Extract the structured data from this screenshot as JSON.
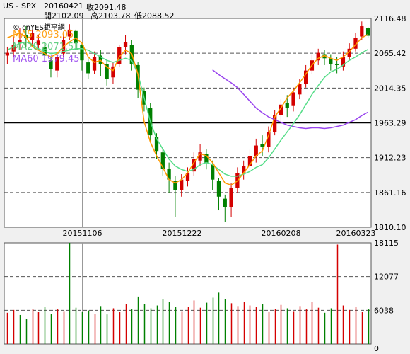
{
  "header": {
    "symbol": "US - SPX",
    "date": "20160421",
    "close_label": "收2091.48",
    "open_label": "開2102.09",
    "high_label": "高2103.78",
    "low_label": "低2088.52"
  },
  "watermark": "© cnYES鉅亨網",
  "colors": {
    "up": "#d40000",
    "down": "#008000",
    "ma5": "#ff9900",
    "ma20": "#55dd88",
    "ma60": "#9944ee",
    "grid": "#555555",
    "ref_line": "#000000"
  },
  "chart_data": [
    {
      "type": "candlestick",
      "title": "",
      "y_tick_labels": [
        "2116.48",
        "2065.42",
        "2014.35",
        "1963.29",
        "1912.23",
        "1861.16",
        "1810.10"
      ],
      "ylim": [
        1810.1,
        2116.48
      ],
      "x_tick_labels": [
        "20151106",
        "20151222",
        "20160208",
        "20160323"
      ],
      "reference_level": 1963.29,
      "legend": [
        {
          "name": "MA5",
          "label": "MA5 2093.05"
        },
        {
          "name": "MA20",
          "label": "MA20 2071.51"
        },
        {
          "name": "MA60",
          "label": "MA60 1979.45"
        }
      ],
      "ma_series": {
        "ma5": [
          2088,
          2092,
          2095,
          2089,
          2075,
          2070,
          2065,
          2060,
          2065,
          2075,
          2082,
          2088,
          2080,
          2060,
          2052,
          2055,
          2045,
          2040,
          2060,
          2070,
          2065,
          2035,
          1965,
          1935,
          1915,
          1898,
          1880,
          1875,
          1880,
          1890,
          1905,
          1918,
          1915,
          1905,
          1890,
          1875,
          1872,
          1878,
          1890,
          1902,
          1915,
          1922,
          1945,
          1972,
          1985,
          2000,
          2010,
          2022,
          2035,
          2048,
          2058,
          2062,
          2058,
          2055,
          2060,
          2068,
          2078,
          2088,
          2093
        ],
        "ma20": [
          2070,
          2075,
          2080,
          2082,
          2078,
          2072,
          2068,
          2065,
          2066,
          2068,
          2070,
          2072,
          2072,
          2070,
          2065,
          2060,
          2055,
          2052,
          2055,
          2058,
          2055,
          2035,
          2000,
          1965,
          1940,
          1925,
          1910,
          1900,
          1895,
          1892,
          1895,
          1902,
          1905,
          1902,
          1895,
          1888,
          1885,
          1885,
          1888,
          1892,
          1898,
          1902,
          1912,
          1925,
          1938,
          1950,
          1962,
          1975,
          1990,
          2005,
          2018,
          2030,
          2038,
          2042,
          2048,
          2055,
          2060,
          2066,
          2071
        ],
        "ma60": [
          null,
          null,
          null,
          null,
          null,
          null,
          null,
          null,
          null,
          null,
          null,
          null,
          null,
          null,
          null,
          null,
          null,
          null,
          null,
          null,
          null,
          null,
          null,
          null,
          null,
          null,
          null,
          null,
          null,
          null,
          null,
          null,
          null,
          2041,
          2034,
          2028,
          2022,
          2015,
          2005,
          1995,
          1985,
          1978,
          1972,
          1968,
          1964,
          1960,
          1958,
          1956,
          1955,
          1956,
          1956,
          1955,
          1956,
          1958,
          1960,
          1964,
          1968,
          1974,
          1979
        ]
      },
      "candles": [
        [
          2062,
          2066,
          2050,
          2075
        ],
        [
          2068,
          2078,
          2060,
          2090
        ],
        [
          2080,
          2085,
          2070,
          2102
        ],
        [
          2092,
          2088,
          2075,
          2105
        ],
        [
          2085,
          2095,
          2075,
          2100
        ],
        [
          2078,
          2084,
          2070,
          2093
        ],
        [
          2075,
          2062,
          2052,
          2082
        ],
        [
          2055,
          2042,
          2030,
          2060
        ],
        [
          2040,
          2060,
          2030,
          2065
        ],
        [
          2065,
          2085,
          2060,
          2093
        ],
        [
          2090,
          2100,
          2085,
          2108
        ],
        [
          2098,
          2080,
          2072,
          2100
        ],
        [
          2078,
          2055,
          2040,
          2082
        ],
        [
          2052,
          2036,
          2028,
          2058
        ],
        [
          2040,
          2060,
          2035,
          2068
        ],
        [
          2062,
          2050,
          2032,
          2070
        ],
        [
          2050,
          2028,
          2018,
          2055
        ],
        [
          2030,
          2046,
          2020,
          2052
        ],
        [
          2050,
          2074,
          2045,
          2078
        ],
        [
          2074,
          2082,
          2064,
          2092
        ],
        [
          2078,
          2050,
          2040,
          2085
        ],
        [
          2048,
          2012,
          2000,
          2052
        ],
        [
          2010,
          1990,
          1980,
          2015
        ],
        [
          1985,
          1945,
          1935,
          1992
        ],
        [
          1942,
          1922,
          1910,
          1948
        ],
        [
          1920,
          1896,
          1885,
          1925
        ],
        [
          1896,
          1880,
          1860,
          1905
        ],
        [
          1878,
          1865,
          1825,
          1885
        ],
        [
          1865,
          1880,
          1855,
          1888
        ],
        [
          1878,
          1890,
          1870,
          1898
        ],
        [
          1892,
          1910,
          1885,
          1920
        ],
        [
          1908,
          1920,
          1900,
          1932
        ],
        [
          1918,
          1905,
          1895,
          1925
        ],
        [
          1902,
          1880,
          1865,
          1908
        ],
        [
          1878,
          1855,
          1835,
          1882
        ],
        [
          1852,
          1840,
          1818,
          1858
        ],
        [
          1840,
          1868,
          1825,
          1875
        ],
        [
          1868,
          1890,
          1860,
          1898
        ],
        [
          1890,
          1900,
          1880,
          1908
        ],
        [
          1900,
          1915,
          1890,
          1924
        ],
        [
          1915,
          1930,
          1905,
          1940
        ],
        [
          1932,
          1928,
          1915,
          1945
        ],
        [
          1928,
          1950,
          1920,
          1958
        ],
        [
          1950,
          1975,
          1945,
          1982
        ],
        [
          1975,
          1990,
          1965,
          1998
        ],
        [
          1992,
          1985,
          1972,
          2004
        ],
        [
          1988,
          2008,
          1980,
          2015
        ],
        [
          2005,
          2020,
          1998,
          2028
        ],
        [
          2020,
          2040,
          2015,
          2048
        ],
        [
          2040,
          2055,
          2035,
          2064
        ],
        [
          2055,
          2066,
          2048,
          2072
        ],
        [
          2064,
          2058,
          2048,
          2070
        ],
        [
          2058,
          2050,
          2040,
          2064
        ],
        [
          2050,
          2048,
          2036,
          2060
        ],
        [
          2046,
          2060,
          2040,
          2068
        ],
        [
          2060,
          2072,
          2055,
          2080
        ],
        [
          2072,
          2088,
          2068,
          2095
        ],
        [
          2090,
          2105,
          2085,
          2112
        ],
        [
          2102,
          2091,
          2088,
          2104
        ]
      ]
    },
    {
      "type": "bar",
      "title": "",
      "y_tick_labels": [
        "18115",
        "12077",
        "6038",
        "0"
      ],
      "ylim": [
        0,
        18115
      ],
      "values": [
        5600,
        6100,
        5200,
        4500,
        6300,
        5800,
        6700,
        5400,
        6200,
        5900,
        18115,
        6500,
        5700,
        6000,
        5400,
        6800,
        5300,
        6400,
        5800,
        7100,
        6200,
        8500,
        7200,
        6400,
        6900,
        8100,
        7500,
        6600,
        5900,
        6700,
        7800,
        6500,
        7400,
        8300,
        9200,
        8100,
        7300,
        6800,
        7500,
        6900,
        6600,
        7100,
        5800,
        6300,
        7000,
        6400,
        5900,
        6800,
        6200,
        7600,
        6500,
        5600,
        6400,
        17800,
        6900,
        6100,
        6600,
        5800,
        6200
      ],
      "up": [
        true,
        true,
        false,
        false,
        true,
        true,
        false,
        false,
        true,
        true,
        false,
        false,
        false,
        false,
        true,
        false,
        false,
        true,
        true,
        true,
        false,
        false,
        false,
        false,
        false,
        false,
        false,
        false,
        true,
        true,
        true,
        true,
        false,
        false,
        false,
        false,
        true,
        true,
        true,
        true,
        true,
        false,
        true,
        true,
        true,
        false,
        true,
        true,
        true,
        true,
        true,
        false,
        false,
        true,
        true,
        true,
        true,
        true,
        false
      ]
    }
  ]
}
